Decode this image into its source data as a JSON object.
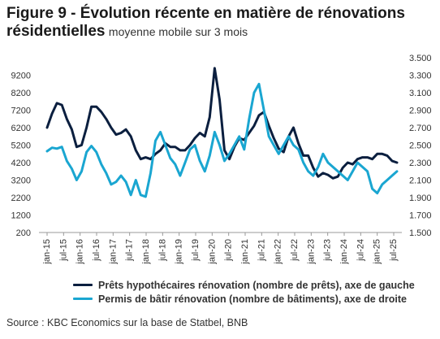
{
  "figure": {
    "title": "Figure 9 - Évolution récente en matière de rénovations",
    "title_line2": "résidentielles",
    "subtitle": "moyenne mobile sur 3 mois"
  },
  "source": "Source : KBC Economics sur la base de Statbel, BNB",
  "chart_data": {
    "type": "line",
    "title": "",
    "grid": false,
    "legend_placement": "bottom",
    "x_ticks": [
      "jan-15",
      "jul-15",
      "jan-16",
      "jul-16",
      "jan-17",
      "jul-17",
      "jan-18",
      "jul-18",
      "jan-19",
      "jul-19",
      "jan-20",
      "jul-20",
      "jan-21",
      "jul-21",
      "jan-22",
      "jul-22",
      "jan-23",
      "jul-23",
      "jan-24",
      "jul-24",
      "jan-25",
      "jul-25"
    ],
    "y_left": {
      "ylim": [
        200,
        10200
      ],
      "ticks": [
        "200",
        "1200",
        "2200",
        "3200",
        "4200",
        "5200",
        "6200",
        "7200",
        "8200",
        "9200"
      ]
    },
    "y_right": {
      "ylim": [
        1500,
        3500
      ],
      "ticks": [
        "1.500",
        "1.700",
        "1.900",
        "2.100",
        "2.300",
        "2.500",
        "2.700",
        "2.900",
        "3.100",
        "3.300",
        "3.500"
      ]
    },
    "series": [
      {
        "name": "Prêts hypothécaires rénovation (nombre de prêts), axe de gauche",
        "axis": "left",
        "color": "#0b1f3f",
        "values": [
          6200,
          7000,
          7600,
          7500,
          6700,
          6100,
          5100,
          5200,
          6200,
          7400,
          7400,
          7100,
          6700,
          6200,
          5800,
          5900,
          6100,
          5700,
          4900,
          4400,
          4500,
          4400,
          4700,
          4900,
          5300,
          5100,
          5100,
          4900,
          4900,
          5200,
          5600,
          5900,
          5700,
          6800,
          9600,
          7800,
          4900,
          4400,
          5100,
          5600,
          5500,
          5900,
          6300,
          6900,
          7100,
          6300,
          5600,
          5000,
          4800,
          5700,
          6200,
          5300,
          4600,
          4600,
          3900,
          3400,
          3600,
          3500,
          3300,
          3400,
          3900,
          4200,
          4100,
          4400,
          4500,
          4500,
          4400,
          4700,
          4700,
          4600,
          4300,
          4200
        ]
      },
      {
        "name": "Permis de bâtir rénovation (nombre de bâtiments), axe de droite",
        "axis": "right",
        "color": "#1aa6d1",
        "values": [
          2430,
          2470,
          2460,
          2480,
          2320,
          2230,
          2100,
          2200,
          2420,
          2490,
          2420,
          2280,
          2180,
          2050,
          2080,
          2150,
          2080,
          1930,
          2100,
          1930,
          1910,
          2180,
          2550,
          2650,
          2500,
          2350,
          2280,
          2150,
          2300,
          2450,
          2500,
          2320,
          2200,
          2380,
          2650,
          2500,
          2320,
          2400,
          2500,
          2600,
          2450,
          2800,
          3100,
          3200,
          2900,
          2600,
          2500,
          2400,
          2500,
          2600,
          2500,
          2450,
          2300,
          2200,
          2150,
          2250,
          2400,
          2300,
          2250,
          2200,
          2150,
          2100,
          2200,
          2300,
          2250,
          2200,
          2000,
          1950,
          2050,
          2100,
          2150,
          2200
        ]
      }
    ]
  }
}
